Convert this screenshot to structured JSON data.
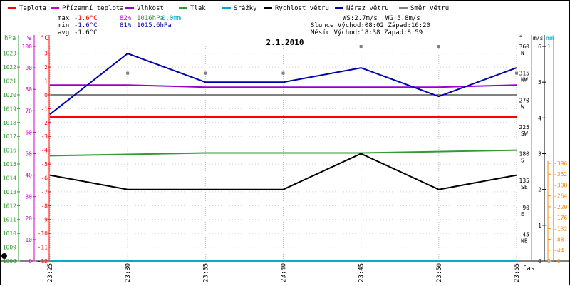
{
  "chart_data": {
    "type": "line",
    "title": "2.1.2010",
    "x_unit_label": "čas",
    "x": [
      "23:25",
      "23:30",
      "23:35",
      "23:40",
      "23:45",
      "23:50",
      "23:55"
    ],
    "legend": [
      {
        "label": "Teplota",
        "color": "#ff0000"
      },
      {
        "label": "Přízemní teplota",
        "color": "#cc00cc"
      },
      {
        "label": "Vlhkost",
        "color": "#9900cc"
      },
      {
        "label": "Tlak",
        "color": "#339933"
      },
      {
        "label": "Srážky",
        "color": "#00aacc"
      },
      {
        "label": "Rychlost větru",
        "color": "#000000"
      },
      {
        "label": "Náraz větru",
        "color": "#0000aa"
      },
      {
        "label": "Směr větru",
        "color": "#808080"
      }
    ],
    "stats": {
      "max": {
        "label": "max",
        "temp": "-1.6°C",
        "hum": "82%",
        "press": "1016hPa",
        "rain": "0.0mm"
      },
      "min": {
        "label": "min",
        "temp": "-1.6°C",
        "hum": "81%",
        "press": "1015.6hPa"
      },
      "avg": {
        "label": "avg",
        "temp": "-1.6°C"
      }
    },
    "info": {
      "ws": "WS:2.7m/s",
      "wg": "WG:5.8m/s",
      "sun": "Slunce Východ:08:02  Západ:16:20",
      "moon": "Měsíc  Východ:18:38  Západ:8:59"
    },
    "axes": {
      "pressure": {
        "unit": "hPa",
        "color": "#339933",
        "ticks": [
          "1023",
          "1022",
          "1021",
          "1020",
          "1019",
          "1018",
          "1017",
          "1016",
          "1015",
          "1014",
          "1013",
          "1012",
          "1011",
          "1010",
          "1009",
          "1008"
        ],
        "range": [
          1008,
          1023.5
        ]
      },
      "humidity": {
        "unit": "%",
        "color": "#cc00cc",
        "ticks": [
          "100",
          "90",
          "80",
          "70",
          "60",
          "50",
          "40",
          "30",
          "20",
          "10",
          "0"
        ],
        "range": [
          0,
          100
        ]
      },
      "temperature": {
        "unit": "°C",
        "color": "#ff0000",
        "ticks": [
          "3",
          "2",
          "1",
          "0",
          "-1",
          "-2",
          "-3",
          "-4",
          "-5",
          "-6",
          "-7",
          "-8",
          "-9",
          "-10",
          "-11",
          "-12"
        ],
        "range": [
          -12,
          3.5
        ]
      },
      "direction": {
        "unit": "°",
        "ticks": [
          "360",
          "315",
          "270",
          "225",
          "180",
          "135",
          "90",
          "45"
        ],
        "dirs": [
          "N",
          "NW",
          "W",
          "SW",
          "S",
          "SE",
          "E",
          "NE"
        ],
        "range": [
          0,
          360
        ]
      },
      "wind": {
        "unit": "m/s",
        "color": "#000000",
        "ticks": [
          "6",
          "5",
          "4",
          "3",
          "2",
          "1",
          "0"
        ],
        "range": [
          0,
          6
        ]
      },
      "rain": {
        "unit": "mm",
        "color": "#00aacc",
        "ticks": [
          "1",
          "0"
        ],
        "range": [
          0,
          1
        ]
      },
      "radiation": {
        "unit": "",
        "color": "#ff8800",
        "ticks": [
          "396",
          "352",
          "308",
          "264",
          "220",
          "176",
          "132",
          "88",
          "44",
          "0"
        ],
        "range": [
          0,
          396
        ]
      }
    },
    "series": [
      {
        "name": "Teplota",
        "color": "#ff0000",
        "width": 3,
        "axis": "temperature",
        "values": [
          -1.6,
          -1.6,
          -1.6,
          -1.6,
          -1.6,
          -1.6,
          -1.6
        ]
      },
      {
        "name": "Přízemní teplota",
        "color": "#cc00cc",
        "width": 1,
        "axis": "temperature",
        "values": [
          1.0,
          1.0,
          1.0,
          1.0,
          1.0,
          1.0,
          1.0
        ]
      },
      {
        "name": "Vlhkost",
        "color": "#9900cc",
        "width": 2,
        "axis": "humidity",
        "values": [
          82,
          82,
          81,
          81,
          81,
          81,
          82
        ]
      },
      {
        "name": "Tlak",
        "color": "#339933",
        "width": 2,
        "axis": "pressure",
        "values": [
          1015.6,
          1015.7,
          1015.8,
          1015.8,
          1015.8,
          1015.9,
          1016.0
        ]
      },
      {
        "name": "Srážky",
        "color": "#00aacc",
        "width": 2,
        "axis": "rain",
        "values": [
          0,
          0,
          0,
          0,
          0,
          0,
          0
        ]
      },
      {
        "name": "Rychlost větru",
        "color": "#000000",
        "width": 2,
        "axis": "wind",
        "values": [
          2.4,
          2.0,
          2.0,
          2.0,
          3.0,
          2.0,
          2.4
        ]
      },
      {
        "name": "Náraz větru",
        "color": "#0000aa",
        "width": 2,
        "axis": "wind",
        "values": [
          4.1,
          5.8,
          5.0,
          5.0,
          5.4,
          4.6,
          5.4
        ]
      }
    ],
    "wind_direction": {
      "name": "Směr větru",
      "color": "#808080",
      "values": [
        0,
        315,
        315,
        315,
        360,
        360,
        315
      ]
    }
  }
}
